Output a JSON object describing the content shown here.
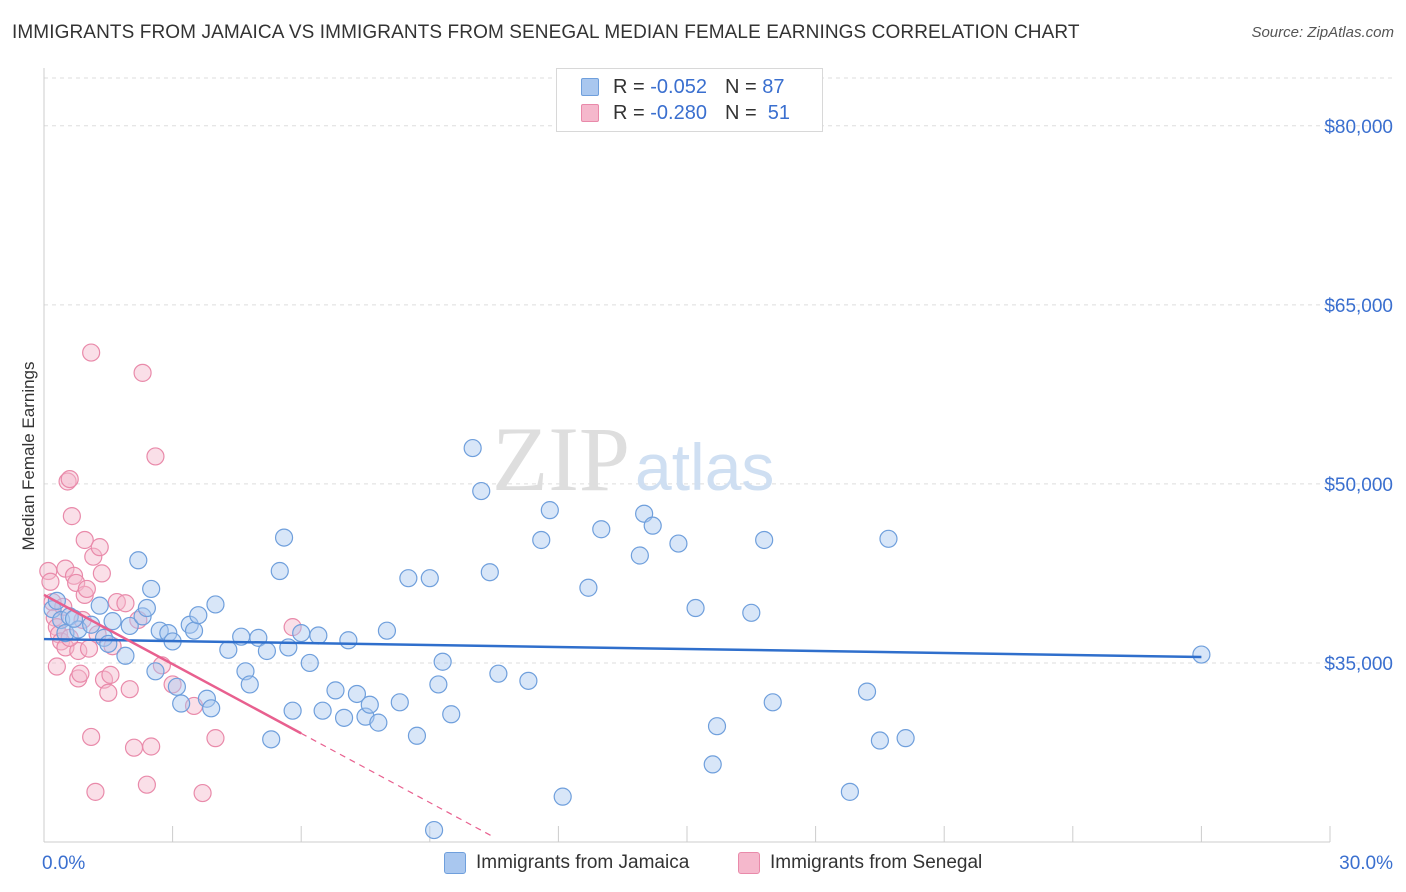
{
  "header": {
    "title": "IMMIGRANTS FROM JAMAICA VS IMMIGRANTS FROM SENEGAL MEDIAN FEMALE EARNINGS CORRELATION CHART",
    "source": "Source: ZipAtlas.com"
  },
  "legend_top": {
    "rows": [
      {
        "r_label": "R =",
        "r_value": "-0.052",
        "n_label": "N =",
        "n_value": "87"
      },
      {
        "r_label": "R =",
        "r_value": "-0.280",
        "n_label": "N =",
        "n_value": "51"
      }
    ]
  },
  "legend_bottom": {
    "items": [
      {
        "label": "Immigrants from Jamaica"
      },
      {
        "label": "Immigrants from Senegal"
      }
    ]
  },
  "watermark": {
    "part1": "ZIP",
    "part2": "atlas"
  },
  "colors": {
    "jamaica_fill": "#a9c7ef",
    "jamaica_stroke": "#6f9fdc",
    "jamaica_line": "#2f6fcc",
    "senegal_fill": "#f5b8cc",
    "senegal_stroke": "#e98aaa",
    "senegal_line": "#e8608f",
    "axis_label": "#3a6fcf",
    "grid": "#dddddd"
  },
  "chart_data": {
    "type": "scatter",
    "title": "IMMIGRANTS FROM JAMAICA VS IMMIGRANTS FROM SENEGAL MEDIAN FEMALE EARNINGS CORRELATION CHART",
    "xlabel": "",
    "ylabel": "Median Female Earnings",
    "xlim": [
      0,
      30
    ],
    "ylim": [
      20000,
      84000
    ],
    "x_tick_labels": [
      {
        "value": 0,
        "label": "0.0%"
      },
      {
        "value": 30,
        "label": "30.0%"
      }
    ],
    "y_ticks": [
      {
        "value": 35000,
        "label": "$35,000"
      },
      {
        "value": 50000,
        "label": "$50,000"
      },
      {
        "value": 65000,
        "label": "$65,000"
      },
      {
        "value": 80000,
        "label": "$80,000"
      }
    ],
    "series": [
      {
        "name": "Immigrants from Jamaica",
        "r": -0.052,
        "n": 87,
        "trend": {
          "x0": 0,
          "y0": 37000,
          "x1": 27,
          "y1": 35500
        },
        "points": [
          [
            0.2,
            39500
          ],
          [
            0.3,
            40200
          ],
          [
            0.4,
            38600
          ],
          [
            0.5,
            37500
          ],
          [
            0.6,
            38900
          ],
          [
            0.8,
            37800
          ],
          [
            1.1,
            38200
          ],
          [
            1.3,
            39800
          ],
          [
            1.4,
            37100
          ],
          [
            1.5,
            36600
          ],
          [
            1.6,
            38500
          ],
          [
            1.9,
            35600
          ],
          [
            2.0,
            38100
          ],
          [
            2.2,
            43600
          ],
          [
            2.3,
            38900
          ],
          [
            2.4,
            39600
          ],
          [
            2.5,
            41200
          ],
          [
            2.6,
            34300
          ],
          [
            2.7,
            37700
          ],
          [
            2.9,
            37500
          ],
          [
            3.0,
            36800
          ],
          [
            3.1,
            33000
          ],
          [
            3.2,
            31600
          ],
          [
            3.4,
            38200
          ],
          [
            3.5,
            37700
          ],
          [
            3.6,
            39000
          ],
          [
            3.8,
            32000
          ],
          [
            3.9,
            31200
          ],
          [
            4.0,
            39900
          ],
          [
            4.3,
            36100
          ],
          [
            4.6,
            37200
          ],
          [
            4.7,
            34300
          ],
          [
            4.8,
            33200
          ],
          [
            5.0,
            37100
          ],
          [
            5.2,
            36000
          ],
          [
            5.3,
            28600
          ],
          [
            5.5,
            42700
          ],
          [
            5.6,
            45500
          ],
          [
            5.7,
            36300
          ],
          [
            5.8,
            31000
          ],
          [
            6.0,
            37500
          ],
          [
            6.2,
            35000
          ],
          [
            6.4,
            37300
          ],
          [
            6.5,
            31000
          ],
          [
            6.8,
            32700
          ],
          [
            7.0,
            30400
          ],
          [
            7.1,
            36900
          ],
          [
            7.3,
            32400
          ],
          [
            7.5,
            30500
          ],
          [
            7.6,
            31500
          ],
          [
            7.8,
            30000
          ],
          [
            8.0,
            37700
          ],
          [
            8.3,
            31700
          ],
          [
            8.5,
            42100
          ],
          [
            8.7,
            28900
          ],
          [
            9.0,
            42100
          ],
          [
            9.2,
            33200
          ],
          [
            9.3,
            35100
          ],
          [
            9.5,
            30700
          ],
          [
            10.0,
            53000
          ],
          [
            10.2,
            49400
          ],
          [
            10.4,
            42600
          ],
          [
            10.6,
            34100
          ],
          [
            11.3,
            33500
          ],
          [
            11.6,
            45300
          ],
          [
            11.8,
            47800
          ],
          [
            12.1,
            23800
          ],
          [
            12.7,
            41300
          ],
          [
            13.0,
            46200
          ],
          [
            13.9,
            44000
          ],
          [
            14.0,
            47500
          ],
          [
            14.2,
            46500
          ],
          [
            14.8,
            45000
          ],
          [
            15.2,
            39600
          ],
          [
            15.6,
            26500
          ],
          [
            15.7,
            29700
          ],
          [
            16.5,
            39200
          ],
          [
            16.8,
            45300
          ],
          [
            17.0,
            31700
          ],
          [
            18.8,
            24200
          ],
          [
            19.2,
            32600
          ],
          [
            19.5,
            28500
          ],
          [
            19.7,
            45400
          ],
          [
            20.1,
            28700
          ],
          [
            9.1,
            21000
          ],
          [
            27.0,
            35700
          ],
          [
            0.7,
            38700
          ]
        ]
      },
      {
        "name": "Immigrants from Senegal",
        "r": -0.28,
        "n": 51,
        "trend": {
          "x0": 0,
          "y0": 40700,
          "x1": 6,
          "y1": 29100
        },
        "trend_extension": {
          "x0": 6,
          "y0": 29100,
          "x1": 10.5,
          "y1": 20400
        },
        "points": [
          [
            0.1,
            42700
          ],
          [
            0.15,
            41800
          ],
          [
            0.2,
            40100
          ],
          [
            0.25,
            38800
          ],
          [
            0.3,
            38000
          ],
          [
            0.35,
            37400
          ],
          [
            0.4,
            36800
          ],
          [
            0.45,
            39700
          ],
          [
            0.5,
            36300
          ],
          [
            0.5,
            42900
          ],
          [
            0.55,
            50200
          ],
          [
            0.6,
            50400
          ],
          [
            0.65,
            47300
          ],
          [
            0.7,
            42300
          ],
          [
            0.75,
            41700
          ],
          [
            0.8,
            36000
          ],
          [
            0.8,
            33700
          ],
          [
            0.85,
            34100
          ],
          [
            0.9,
            38600
          ],
          [
            0.95,
            40700
          ],
          [
            0.95,
            45300
          ],
          [
            1.0,
            41200
          ],
          [
            1.05,
            36200
          ],
          [
            1.1,
            28800
          ],
          [
            1.15,
            43900
          ],
          [
            1.2,
            24200
          ],
          [
            1.25,
            37400
          ],
          [
            1.3,
            44700
          ],
          [
            1.35,
            42500
          ],
          [
            1.4,
            33600
          ],
          [
            1.5,
            32500
          ],
          [
            1.55,
            34000
          ],
          [
            1.6,
            36400
          ],
          [
            1.1,
            61000
          ],
          [
            1.7,
            40100
          ],
          [
            1.9,
            40000
          ],
          [
            2.0,
            32800
          ],
          [
            2.1,
            27900
          ],
          [
            2.2,
            38600
          ],
          [
            2.3,
            59300
          ],
          [
            2.4,
            24800
          ],
          [
            2.5,
            28000
          ],
          [
            2.6,
            52300
          ],
          [
            2.75,
            34800
          ],
          [
            3.0,
            33200
          ],
          [
            3.5,
            31400
          ],
          [
            3.7,
            24100
          ],
          [
            4.0,
            28700
          ],
          [
            5.8,
            38000
          ],
          [
            0.3,
            34700
          ],
          [
            0.6,
            37100
          ]
        ]
      }
    ]
  }
}
